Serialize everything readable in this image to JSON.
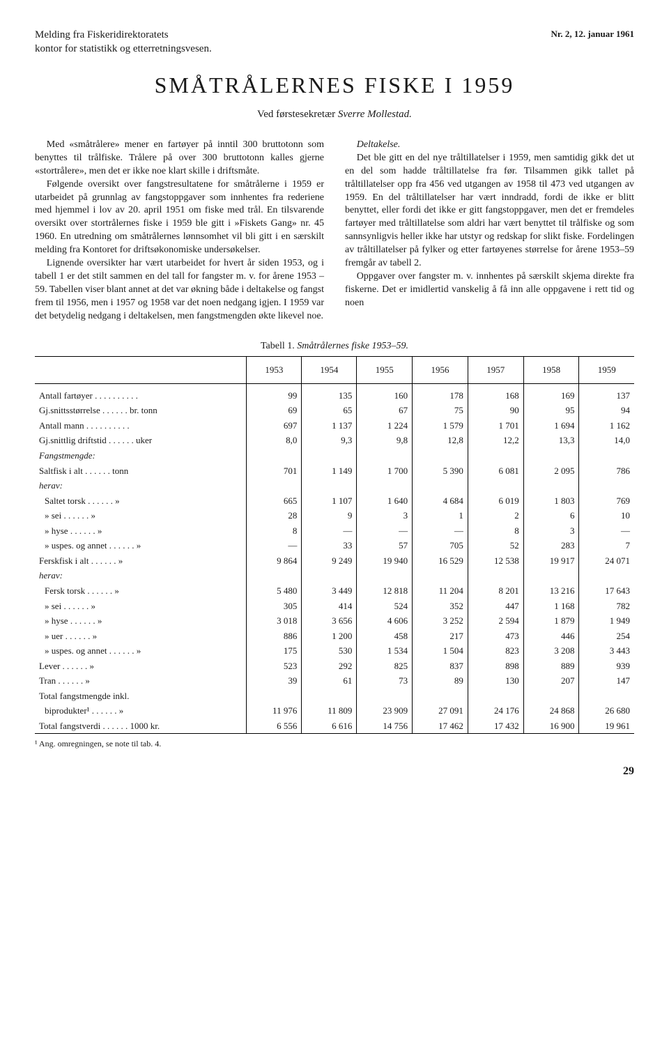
{
  "header": {
    "issue": "Nr. 2, 12. januar 1961",
    "source_line1": "Melding fra Fiskeridirektoratets",
    "source_line2": "kontor for statistikk og etterretningsvesen."
  },
  "title": "SMÅTRÅLERNES FISKE I 1959",
  "byline_prefix": "Ved førstesekretær ",
  "byline_author": "Sverre Mollestad.",
  "body": {
    "p1": "Med «småtrålere» mener en fartøyer på inntil 300 bruttotonn som benyttes til trålfiske. Trålere på over 300 bruttotonn kalles gjerne «stortrålere», men det er ikke noe klart skille i driftsmåte.",
    "p2": "Følgende oversikt over fangstresultatene for småtrålerne i 1959 er utarbeidet på grunnlag av fangstoppgaver som innhentes fra rederiene med hjemmel i lov av 20. april 1951 om fiske med trål. En tilsvarende oversikt over stortrålernes fiske i 1959 ble gitt i »Fiskets Gang» nr. 45 1960. En utredning om småtrålernes lønnsomhet vil bli gitt i en særskilt melding fra Kontoret for driftsøkonomiske undersøkelser.",
    "p3": "Lignende oversikter har vært utarbeidet for hvert år siden 1953, og i tabell 1 er det stilt sammen en del tall for fangster m. v. for årene 1953 –59. Tabellen viser blant annet at det var økning både i deltakelse og fangst frem til 1956, men i 1957 og 1958 var det noen nedgang igjen. I 1959 var det betydelig nedgang i deltakelsen, men fangstmengden økte likevel noe.",
    "p4_head": "Deltakelse.",
    "p4": "Det ble gitt en del nye tråltillatelser i 1959, men samtidig gikk det ut en del som hadde tråltillatelse fra før. Tilsammen gikk tallet på tråltillatelser opp fra 456 ved utgangen av 1958 til 473 ved utgangen av 1959. En del tråltillatelser har vært inndradd, fordi de ikke er blitt benyttet, eller fordi det ikke er gitt fangstoppgaver, men det er fremdeles fartøyer med tråltillatelse som aldri har vært benyttet til trålfiske og som sannsynligvis heller ikke har utstyr og redskap for slikt fiske. Fordelingen av tråltillatelser på fylker og etter fartøyenes størrelse for årene 1953–59 fremgår av tabell 2.",
    "p5": "Oppgaver over fangster m. v. innhentes på særskilt skjema direkte fra fiskerne. Det er imidlertid vanskelig å få inn alle oppgavene i rett tid og noen"
  },
  "table": {
    "caption_prefix": "Tabell 1. ",
    "caption_italic": "Småtrålernes fiske 1953–59.",
    "years": [
      "1953",
      "1954",
      "1955",
      "1956",
      "1957",
      "1958",
      "1959"
    ],
    "rows": [
      {
        "label": "Antall fartøyer",
        "unit": "",
        "vals": [
          "99",
          "135",
          "160",
          "178",
          "168",
          "169",
          "137"
        ]
      },
      {
        "label": "Gj.snittsstørrelse",
        "unit": "br. tonn",
        "vals": [
          "69",
          "65",
          "67",
          "75",
          "90",
          "95",
          "94"
        ]
      },
      {
        "label": "Antall mann",
        "unit": "",
        "vals": [
          "697",
          "1 137",
          "1 224",
          "1 579",
          "1 701",
          "1 694",
          "1 162"
        ]
      },
      {
        "label": "Gj.snittlig driftstid",
        "unit": "uker",
        "vals": [
          "8,0",
          "9,3",
          "9,8",
          "12,8",
          "12,2",
          "13,3",
          "14,0"
        ]
      },
      {
        "label": "Fangstmengde:",
        "unit": "",
        "section": true,
        "vals": [
          "",
          "",
          "",
          "",
          "",
          "",
          ""
        ]
      },
      {
        "label": "Saltfisk i alt",
        "unit": "tonn",
        "vals": [
          "701",
          "1 149",
          "1 700",
          "5 390",
          "6 081",
          "2 095",
          "786"
        ]
      },
      {
        "label": "herav:",
        "unit": "",
        "section": true,
        "vals": [
          "",
          "",
          "",
          "",
          "",
          "",
          ""
        ]
      },
      {
        "label": "Saltet torsk",
        "unit": "»",
        "indent": 1,
        "vals": [
          "665",
          "1 107",
          "1 640",
          "4 684",
          "6 019",
          "1 803",
          "769"
        ]
      },
      {
        "label": "»   sei",
        "unit": "»",
        "indent": 1,
        "vals": [
          "28",
          "9",
          "3",
          "1",
          "2",
          "6",
          "10"
        ]
      },
      {
        "label": "»   hyse",
        "unit": "»",
        "indent": 1,
        "vals": [
          "8",
          "—",
          "—",
          "—",
          "8",
          "3",
          "—"
        ]
      },
      {
        "label": "»   uspes. og annet",
        "unit": "»",
        "indent": 1,
        "vals": [
          "—",
          "33",
          "57",
          "705",
          "52",
          "283",
          "7"
        ]
      },
      {
        "label": "Ferskfisk i alt",
        "unit": "»",
        "vals": [
          "9 864",
          "9 249",
          "19 940",
          "16 529",
          "12 538",
          "19 917",
          "24 071"
        ]
      },
      {
        "label": "herav:",
        "unit": "",
        "section": true,
        "vals": [
          "",
          "",
          "",
          "",
          "",
          "",
          ""
        ]
      },
      {
        "label": "Fersk torsk",
        "unit": "»",
        "indent": 1,
        "vals": [
          "5 480",
          "3 449",
          "12 818",
          "11 204",
          "8 201",
          "13 216",
          "17 643"
        ]
      },
      {
        "label": "»   sei",
        "unit": "»",
        "indent": 1,
        "vals": [
          "305",
          "414",
          "524",
          "352",
          "447",
          "1 168",
          "782"
        ]
      },
      {
        "label": "»   hyse",
        "unit": "»",
        "indent": 1,
        "vals": [
          "3 018",
          "3 656",
          "4 606",
          "3 252",
          "2 594",
          "1 879",
          "1 949"
        ]
      },
      {
        "label": "»   uer",
        "unit": "»",
        "indent": 1,
        "vals": [
          "886",
          "1 200",
          "458",
          "217",
          "473",
          "446",
          "254"
        ]
      },
      {
        "label": "»   uspes. og annet",
        "unit": "»",
        "indent": 1,
        "vals": [
          "175",
          "530",
          "1 534",
          "1 504",
          "823",
          "3 208",
          "3 443"
        ]
      },
      {
        "label": "Lever",
        "unit": "»",
        "vals": [
          "523",
          "292",
          "825",
          "837",
          "898",
          "889",
          "939"
        ]
      },
      {
        "label": "Tran",
        "unit": "»",
        "vals": [
          "39",
          "61",
          "73",
          "89",
          "130",
          "207",
          "147"
        ]
      },
      {
        "label": "Total fangstmengde inkl.",
        "unit": "",
        "section": true,
        "vals": [
          "",
          "",
          "",
          "",
          "",
          "",
          ""
        ]
      },
      {
        "label": "biprodukter¹",
        "unit": "»",
        "indent": 1,
        "vals": [
          "11 976",
          "11 809",
          "23 909",
          "27 091",
          "24 176",
          "24 868",
          "26 680"
        ]
      },
      {
        "label": "Total fangstverdi",
        "unit": "1000 kr.",
        "vals": [
          "6 556",
          "6 616",
          "14 756",
          "17 462",
          "17 432",
          "16 900",
          "19 961"
        ]
      }
    ],
    "footnote": "¹ Ang. omregningen, se note til tab. 4."
  },
  "pagenum": "29"
}
